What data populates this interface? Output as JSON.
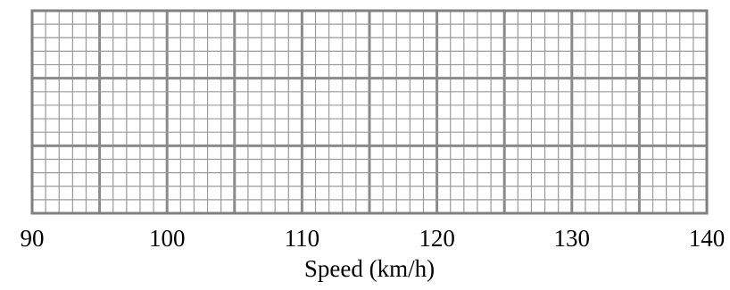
{
  "chart_data": {
    "type": "scatter",
    "title": "",
    "xlabel": "Speed (km/h)",
    "ylabel": "",
    "xlim": [
      90,
      140
    ],
    "x_ticks": [
      "90",
      "100",
      "110",
      "120",
      "130",
      "140"
    ],
    "x_major_step": 5,
    "x_minor_step": 1,
    "y_major_divisions": 3,
    "y_minor_per_major": 5,
    "grid": true,
    "series": [],
    "colors": {
      "minor_grid": "#9a9a9a",
      "major_grid": "#8a8a8a",
      "frame": "#808080",
      "text": "#000000"
    }
  }
}
